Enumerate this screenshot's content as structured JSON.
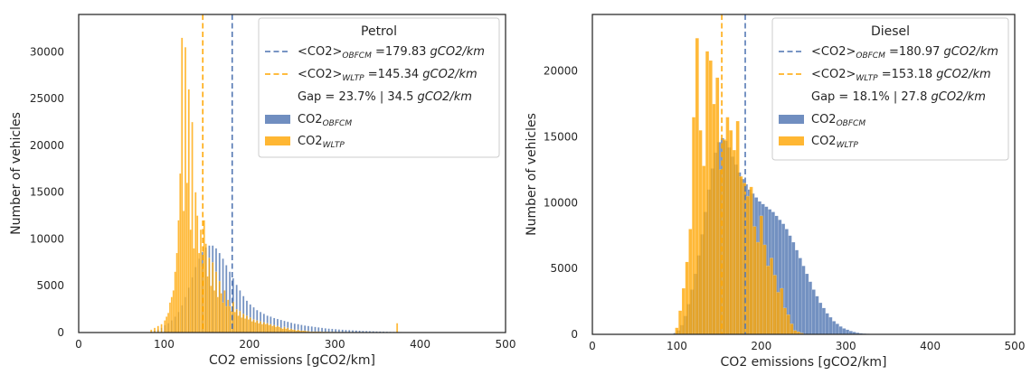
{
  "chart_data": [
    {
      "type": "histogram",
      "legend_title": "Petrol",
      "xlabel": "CO2 emissions [gCO2/km]",
      "ylabel": "Number of vehicles",
      "xlim": [
        0,
        500
      ],
      "ylim": [
        0,
        34000
      ],
      "xticks": [
        0,
        100,
        200,
        300,
        400,
        500
      ],
      "yticks": [
        0,
        5000,
        10000,
        15000,
        20000,
        25000,
        30000
      ],
      "legend_position": "upper right",
      "bin_width": 2,
      "means": {
        "obfcm": 179.83,
        "wltp": 145.34
      },
      "legend": {
        "mean_obfcm": {
          "pre": "<CO2>",
          "sub": "OBFCM",
          "post": " =179.83 ",
          "unit": "gCO2/km"
        },
        "mean_wltp": {
          "pre": "<CO2>",
          "sub": "WLTP",
          "post": " =145.34 ",
          "unit": "gCO2/km"
        },
        "gap": {
          "text": "Gap = 23.7% | 34.5 ",
          "unit": "gCO2/km"
        },
        "obfcm": {
          "pre": "CO2",
          "sub": "OBFCM"
        },
        "wltp": {
          "pre": "CO2",
          "sub": "WLTP"
        }
      },
      "colors": {
        "obfcm": "#4c72b0",
        "wltp": "#ffa500",
        "obfcm_line": "#4c72b0",
        "wltp_line": "#ffa500"
      },
      "series": [
        {
          "name": "CO2_OBFCM",
          "x": [
            80,
            84,
            88,
            92,
            96,
            100,
            104,
            108,
            112,
            116,
            120,
            124,
            128,
            132,
            136,
            140,
            144,
            148,
            152,
            156,
            160,
            164,
            168,
            172,
            176,
            180,
            184,
            188,
            192,
            196,
            200,
            204,
            208,
            212,
            216,
            220,
            224,
            228,
            232,
            236,
            240,
            244,
            248,
            252,
            256,
            260,
            264,
            268,
            272,
            276,
            280,
            284,
            288,
            292,
            296,
            300,
            304,
            308,
            312,
            316,
            320,
            324,
            328,
            332,
            336,
            340,
            344,
            348,
            352,
            356,
            360,
            364,
            368,
            372,
            376,
            380,
            384,
            388,
            392,
            396,
            400
          ],
          "values": [
            0,
            100,
            200,
            300,
            500,
            800,
            1000,
            1300,
            1700,
            2200,
            2900,
            3800,
            4800,
            5900,
            7000,
            7900,
            8600,
            9100,
            9300,
            9300,
            9000,
            8500,
            7900,
            7200,
            6500,
            5800,
            5100,
            4500,
            3900,
            3400,
            3000,
            2700,
            2400,
            2200,
            2000,
            1800,
            1700,
            1550,
            1450,
            1350,
            1250,
            1150,
            1050,
            950,
            900,
            820,
            750,
            700,
            650,
            600,
            550,
            500,
            450,
            420,
            390,
            360,
            330,
            300,
            280,
            260,
            240,
            220,
            200,
            180,
            160,
            150,
            140,
            120,
            110,
            100,
            90,
            80,
            70,
            60,
            50,
            40,
            30,
            20,
            20,
            10,
            0
          ]
        },
        {
          "name": "CO2_WLTP",
          "x": [
            84,
            88,
            92,
            96,
            100,
            102,
            104,
            106,
            108,
            110,
            112,
            114,
            116,
            118,
            120,
            122,
            124,
            126,
            128,
            130,
            132,
            134,
            136,
            138,
            140,
            142,
            144,
            146,
            148,
            150,
            152,
            154,
            156,
            158,
            160,
            162,
            164,
            166,
            168,
            170,
            172,
            174,
            176,
            178,
            180,
            182,
            184,
            186,
            188,
            190,
            192,
            194,
            196,
            198,
            200,
            202,
            204,
            206,
            208,
            210,
            212,
            214,
            216,
            218,
            220,
            222,
            224,
            226,
            228,
            230,
            232,
            234,
            236,
            238,
            240,
            242,
            244,
            246,
            248,
            250,
            252,
            254,
            256,
            258,
            260,
            262,
            264,
            266,
            268,
            270,
            272,
            274,
            276,
            278,
            280,
            282,
            284,
            286,
            288,
            290,
            292,
            294,
            296,
            298,
            300,
            302,
            304,
            306,
            308,
            310,
            312,
            314,
            316,
            318,
            320,
            322,
            324,
            326,
            328,
            330,
            332,
            334,
            336,
            338,
            340,
            342,
            344,
            346,
            348,
            350,
            352,
            354,
            356,
            358,
            360,
            362,
            364,
            366,
            368,
            370,
            372
          ],
          "values": [
            300,
            500,
            700,
            900,
            1300,
            1700,
            2100,
            3200,
            3800,
            4500,
            6500,
            8500,
            12000,
            17000,
            31500,
            13000,
            30500,
            16000,
            26000,
            11000,
            22500,
            9000,
            15000,
            12500,
            8500,
            11000,
            7000,
            12000,
            9500,
            6000,
            8000,
            5000,
            7500,
            4500,
            6500,
            3800,
            5500,
            4200,
            3200,
            4500,
            2800,
            3500,
            2800,
            2300,
            3300,
            2200,
            2500,
            1800,
            2300,
            1600,
            2000,
            1500,
            1800,
            1400,
            1600,
            1200,
            1400,
            1100,
            1300,
            1000,
            1200,
            900,
            1100,
            900,
            1000,
            800,
            900,
            700,
            800,
            600,
            700,
            600,
            500,
            400,
            600,
            400,
            500,
            300,
            400,
            300,
            300,
            200,
            300,
            200,
            200,
            200,
            200,
            150,
            150,
            100,
            100,
            100,
            100,
            100,
            100,
            100,
            80,
            80,
            80,
            80,
            60,
            60,
            60,
            60,
            50,
            50,
            50,
            50,
            40,
            40,
            40,
            40,
            30,
            30,
            30,
            30,
            30,
            30,
            30,
            30,
            20,
            20,
            20,
            20,
            20,
            20,
            20,
            20,
            20,
            20,
            20,
            20,
            20,
            20,
            20,
            20,
            20,
            20,
            20,
            20,
            1000
          ]
        }
      ]
    },
    {
      "type": "histogram",
      "legend_title": "Diesel",
      "xlabel": "CO2 emissions [gCO2/km]",
      "ylabel": "Number of vehicles",
      "xlim": [
        0,
        500
      ],
      "ylim": [
        0,
        24300
      ],
      "xticks": [
        0,
        100,
        200,
        300,
        400,
        500
      ],
      "yticks": [
        0,
        5000,
        10000,
        15000,
        20000
      ],
      "legend_position": "upper right",
      "bin_width": 4,
      "means": {
        "obfcm": 180.97,
        "wltp": 153.18
      },
      "legend": {
        "mean_obfcm": {
          "pre": "<CO2>",
          "sub": "OBFCM",
          "post": " =180.97 ",
          "unit": "gCO2/km"
        },
        "mean_wltp": {
          "pre": "<CO2>",
          "sub": "WLTP",
          "post": " =153.18 ",
          "unit": "gCO2/km"
        },
        "gap": {
          "text": "Gap = 18.1% | 27.8 ",
          "unit": "gCO2/km"
        },
        "obfcm": {
          "pre": "CO2",
          "sub": "OBFCM"
        },
        "wltp": {
          "pre": "CO2",
          "sub": "WLTP"
        }
      },
      "colors": {
        "obfcm": "#4c72b0",
        "wltp": "#ffa500",
        "obfcm_line": "#4c72b0",
        "wltp_line": "#ffa500"
      },
      "series": [
        {
          "name": "CO2_OBFCM",
          "x": [
            96,
            100,
            104,
            108,
            112,
            116,
            120,
            124,
            128,
            132,
            136,
            140,
            144,
            148,
            152,
            156,
            160,
            164,
            168,
            172,
            176,
            180,
            184,
            188,
            192,
            196,
            200,
            204,
            208,
            212,
            216,
            220,
            224,
            228,
            232,
            236,
            240,
            244,
            248,
            252,
            256,
            260,
            264,
            268,
            272,
            276,
            280,
            284,
            288,
            292,
            296,
            300,
            304,
            308,
            312,
            316,
            320,
            324,
            328,
            332,
            336,
            340,
            344,
            348,
            352,
            356,
            360
          ],
          "values": [
            100,
            300,
            700,
            1400,
            2300,
            3400,
            4600,
            6000,
            7600,
            9300,
            11000,
            12600,
            13800,
            14600,
            14900,
            14700,
            14200,
            13500,
            12900,
            12300,
            11800,
            11400,
            11000,
            10700,
            10400,
            10100,
            9900,
            9700,
            9500,
            9300,
            9000,
            8700,
            8400,
            8000,
            7500,
            7000,
            6400,
            5800,
            5200,
            4600,
            4000,
            3400,
            2900,
            2400,
            2000,
            1600,
            1300,
            1000,
            800,
            600,
            450,
            350,
            250,
            180,
            120,
            80,
            60,
            40,
            30,
            20,
            10,
            10,
            5,
            5,
            0,
            0,
            0
          ]
        },
        {
          "name": "CO2_WLTP",
          "x": [
            98,
            102,
            106,
            110,
            114,
            118,
            122,
            126,
            130,
            134,
            138,
            142,
            146,
            150,
            154,
            158,
            162,
            166,
            170,
            174,
            178,
            182,
            186,
            190,
            194,
            198,
            202,
            206,
            210,
            214,
            218,
            222,
            226,
            230,
            234,
            238,
            242,
            246,
            250
          ],
          "values": [
            500,
            1800,
            3500,
            5500,
            8000,
            16500,
            22500,
            15500,
            12800,
            21500,
            20800,
            17500,
            19500,
            12500,
            14800,
            16500,
            15500,
            14000,
            16200,
            12000,
            11500,
            10500,
            11200,
            8200,
            7000,
            9000,
            6800,
            5200,
            5800,
            4500,
            3200,
            3500,
            2000,
            1500,
            800,
            300,
            200,
            100,
            0
          ]
        }
      ]
    }
  ]
}
